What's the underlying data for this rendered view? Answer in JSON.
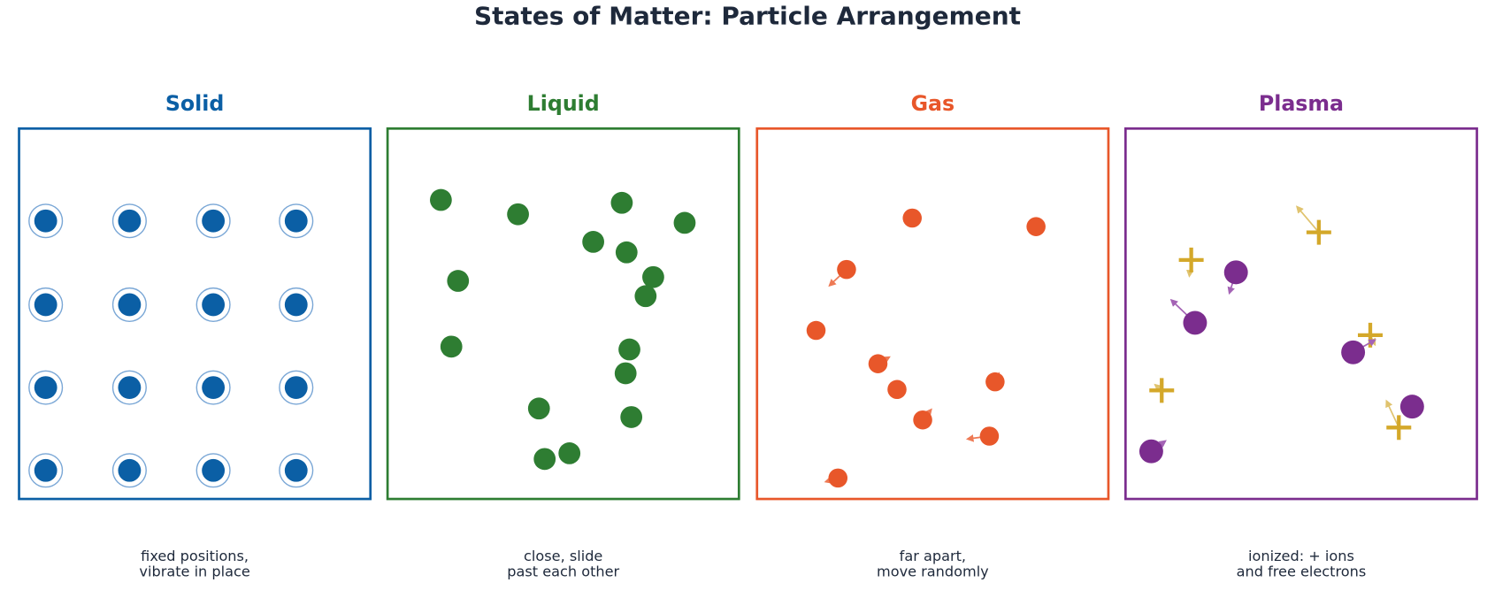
{
  "title": "States of Matter: Particle Arrangement",
  "panels": [
    {
      "name": "Solid",
      "caption": [
        "fixed positions,",
        "vibrate in place"
      ]
    },
    {
      "name": "Liquid",
      "caption": [
        "close, slide",
        "past each other"
      ]
    },
    {
      "name": "Gas",
      "caption": [
        "far apart,",
        "move randomly"
      ]
    },
    {
      "name": "Plasma",
      "caption": [
        "ionized: + ions",
        "and free electrons"
      ]
    }
  ]
}
